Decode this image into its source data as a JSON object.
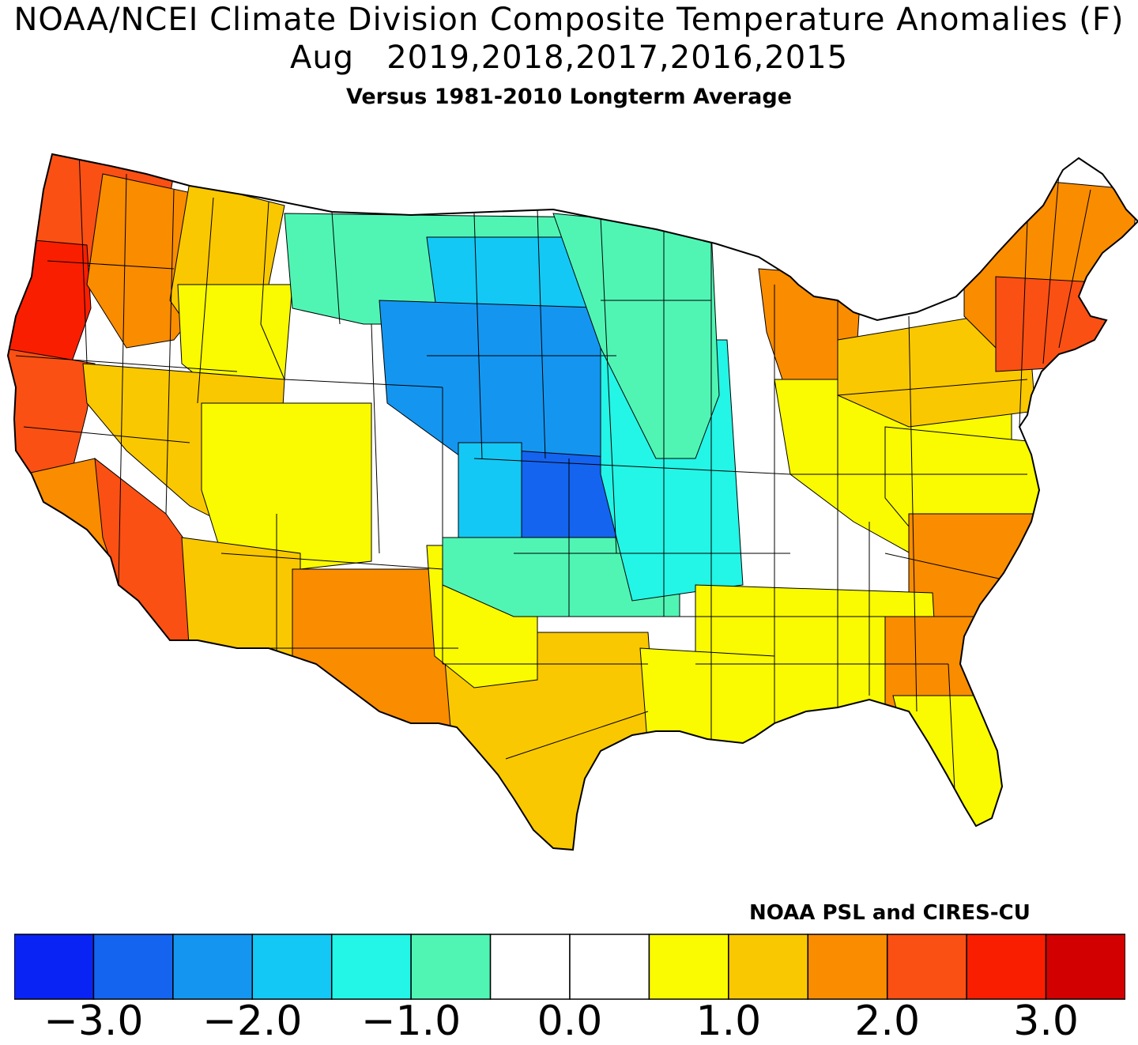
{
  "title_line1": "NOAA/NCEI Climate Division Composite Temperature Anomalies (F)",
  "title_line2": "Aug   2019,2018,2017,2016,2015",
  "title_line3": "Versus 1981-2010 Longterm Average",
  "credit": "NOAA PSL and CIRES-CU",
  "legend": {
    "colors": [
      "#0a23f5",
      "#1464f0",
      "#1496f0",
      "#14c8f5",
      "#23f5e6",
      "#50f5b4",
      "#ffffff",
      "#ffffff",
      "#fafa00",
      "#fac800",
      "#fa8c00",
      "#fa5014",
      "#fa1e00",
      "#d20000"
    ],
    "tick_labels": [
      "−3.0",
      "−2.0",
      "−1.0",
      "0.0",
      "1.0",
      "2.0",
      "3.0"
    ],
    "tick_values": [
      -3.0,
      -2.0,
      -1.0,
      0.0,
      1.0,
      2.0,
      3.0
    ],
    "min": -3.5,
    "max": 3.5
  },
  "regions": [
    {
      "name": "pacific-northwest-coast",
      "color": "#fa5014"
    },
    {
      "name": "oregon-west",
      "color": "#fa1e00"
    },
    {
      "name": "inland-northwest",
      "color": "#fa8c00"
    },
    {
      "name": "northern-rockies",
      "color": "#fac800"
    },
    {
      "name": "idaho-wyoming",
      "color": "#fafa00"
    },
    {
      "name": "california-coast",
      "color": "#fa5014"
    },
    {
      "name": "california-south",
      "color": "#fa8c00"
    },
    {
      "name": "nevada",
      "color": "#fac800"
    },
    {
      "name": "utah-colorado-west",
      "color": "#fafa00"
    },
    {
      "name": "arizona-desert",
      "color": "#fa5014"
    },
    {
      "name": "arizona-south",
      "color": "#fac800"
    },
    {
      "name": "new-mexico-south",
      "color": "#fa8c00"
    },
    {
      "name": "texas-south",
      "color": "#fac800"
    },
    {
      "name": "texas-panhandle",
      "color": "#fafa00"
    },
    {
      "name": "montana-east",
      "color": "#50f5b4"
    },
    {
      "name": "dakotas",
      "color": "#14c8f5"
    },
    {
      "name": "wyoming-nebraska",
      "color": "#1496f0"
    },
    {
      "name": "kansas-central",
      "color": "#1464f0"
    },
    {
      "name": "oklahoma-north",
      "color": "#14c8f5"
    },
    {
      "name": "oklahoma-south",
      "color": "#50f5b4"
    },
    {
      "name": "iowa-missouri",
      "color": "#23f5e6"
    },
    {
      "name": "minnesota",
      "color": "#50f5b4"
    },
    {
      "name": "great-lakes-michigan",
      "color": "#fa8c00"
    },
    {
      "name": "ohio-valley",
      "color": "#fafa00"
    },
    {
      "name": "mid-atlantic",
      "color": "#fac800"
    },
    {
      "name": "new-england",
      "color": "#fa8c00"
    },
    {
      "name": "southern-new-england",
      "color": "#fa5014"
    },
    {
      "name": "appalachians",
      "color": "#fafa00"
    },
    {
      "name": "carolinas-coast",
      "color": "#fa8c00"
    },
    {
      "name": "southeast",
      "color": "#fafa00"
    },
    {
      "name": "georgia-coast",
      "color": "#fa8c00"
    },
    {
      "name": "florida",
      "color": "#fafa00"
    },
    {
      "name": "gulf-louisiana",
      "color": "#fafa00"
    }
  ]
}
